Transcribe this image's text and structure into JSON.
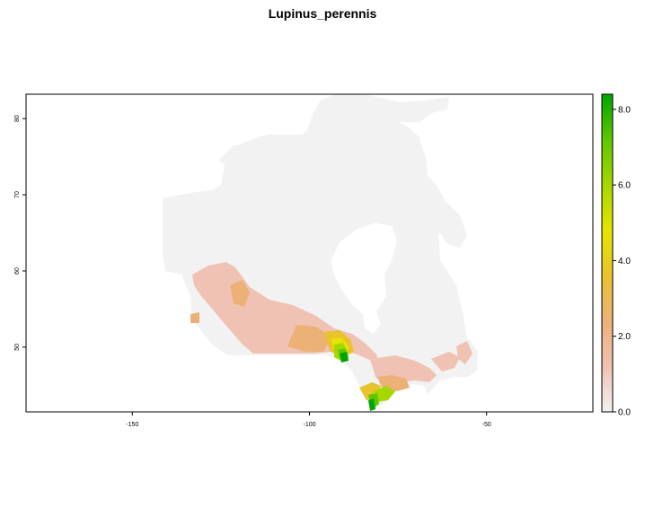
{
  "title": "Lupinus_perennis",
  "map": {
    "x_axis": {
      "range": [
        -180,
        -20
      ],
      "ticks": [
        -150,
        -100,
        -50
      ],
      "tick_labels": [
        "-150",
        "-100",
        "-50"
      ]
    },
    "y_axis": {
      "range": [
        41.5,
        83.2
      ],
      "ticks": [
        50,
        60,
        70,
        80
      ],
      "tick_labels": [
        "50",
        "60",
        "70",
        "80"
      ]
    },
    "background_value_color": "#f2f2f2",
    "region": "Canada",
    "value_range": [
      0,
      8.4
    ]
  },
  "legend": {
    "ticks": [
      0,
      2,
      4,
      6,
      8
    ],
    "labels": [
      "0.0",
      "2.0",
      "4.0",
      "6.0",
      "8.0"
    ],
    "range": [
      0,
      8.4
    ],
    "colors": [
      "#f2f2f2",
      "#efc2b3",
      "#ecb176",
      "#e8c32e",
      "#e5e500",
      "#a6d700",
      "#5fc700",
      "#00a600"
    ]
  }
}
